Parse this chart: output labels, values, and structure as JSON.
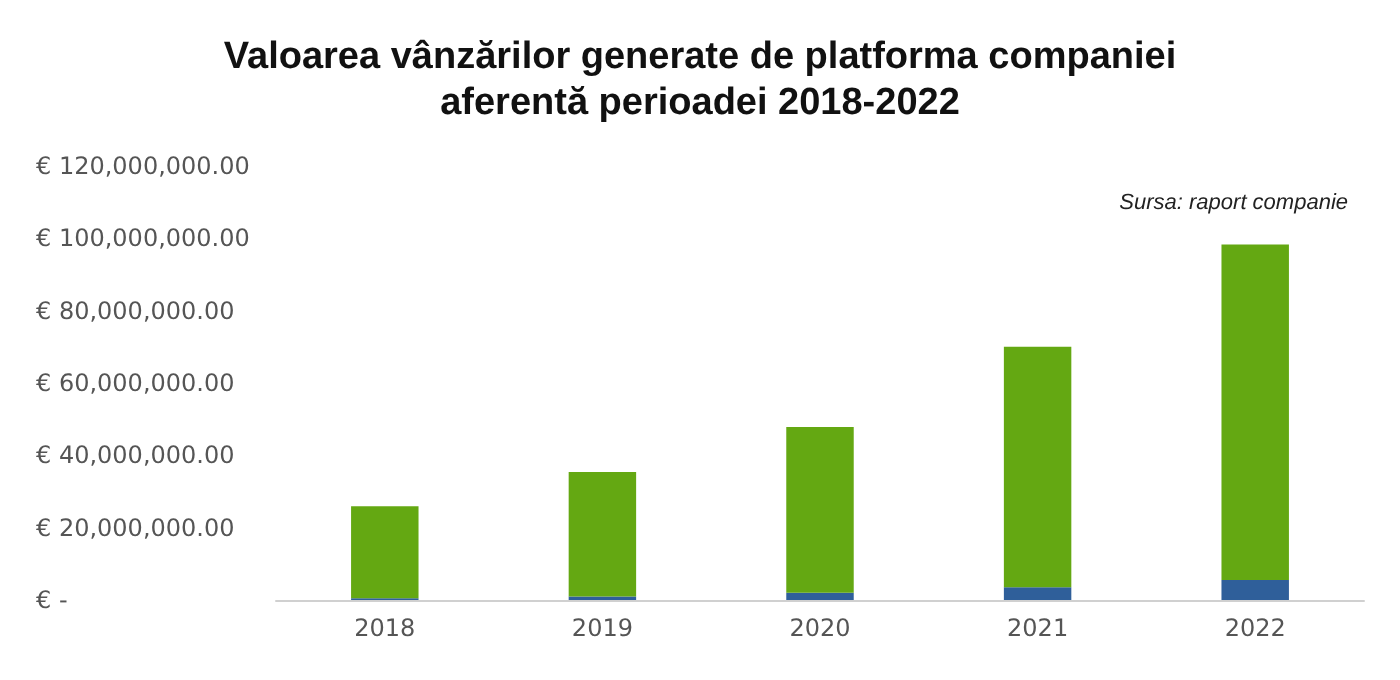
{
  "chart_data": {
    "type": "bar",
    "title": "Valoarea vânzărilor generate de platforma companiei\naferentă perioadei 2018-2022",
    "categories": [
      "2018",
      "2019",
      "2020",
      "2021",
      "2022"
    ],
    "stacked": true,
    "series": [
      {
        "color": "#2f5f9a",
        "values": [
          500000,
          1000000,
          2000000,
          3500000,
          5500000
        ]
      },
      {
        "color": "#64a812",
        "values": [
          25400000,
          34400000,
          45800000,
          66500000,
          92800000
        ]
      }
    ],
    "ylim": [
      0,
      120000000
    ],
    "yticks": [
      {
        "value": 0,
        "label": "€ -"
      },
      {
        "value": 20000000,
        "label": "€ 20,000,000.00"
      },
      {
        "value": 40000000,
        "label": "€ 40,000,000.00"
      },
      {
        "value": 60000000,
        "label": "€ 60,000,000.00"
      },
      {
        "value": 80000000,
        "label": "€ 80,000,000.00"
      },
      {
        "value": 100000000,
        "label": "€ 100,000,000.00"
      },
      {
        "value": 120000000,
        "label": "€ 120,000,000.00"
      }
    ],
    "grid": false,
    "annotations": [
      "Sursa: raport companie"
    ]
  }
}
